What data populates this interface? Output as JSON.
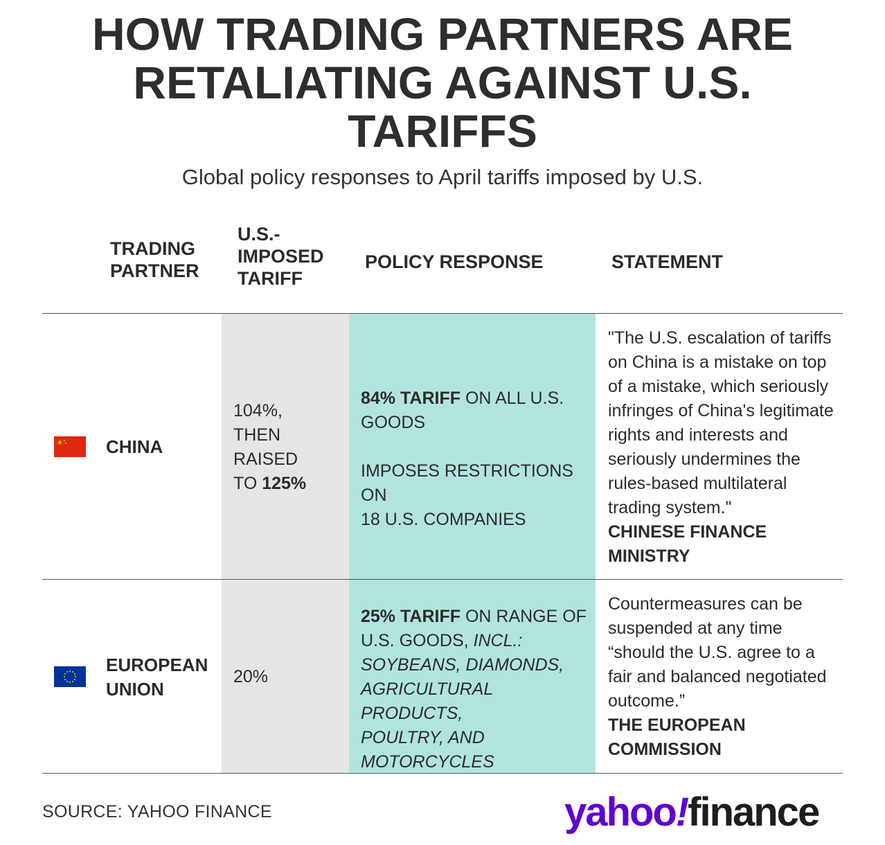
{
  "title_lines": [
    "HOW TRADING PARTNERS ARE",
    "RETALIATING AGAINST U.S.",
    "TARIFFS"
  ],
  "subtitle": "Global policy responses to April tariffs imposed by U.S.",
  "headers": {
    "partner": [
      "TRADING",
      "PARTNER"
    ],
    "tariff": [
      "U.S.-",
      "IMPOSED",
      "TARIFF"
    ],
    "response": "POLICY RESPONSE",
    "statement": "STATEMENT"
  },
  "rows": [
    {
      "flag": "china-flag",
      "partner": [
        "CHINA"
      ],
      "tariff_lines": [
        "104%,",
        "THEN",
        "RAISED"
      ],
      "tariff_last_prefix": "TO ",
      "tariff_last_bold": "125%",
      "response_bold": "84% TARIFF",
      "response_line1_rest": " ON ALL U.S.",
      "response_line2": "GOODS",
      "response_line3": "IMPOSES RESTRICTIONS ON",
      "response_line4": "18 U.S. COMPANIES",
      "statement_lines": [
        "\"The U.S. escalation of tariffs",
        "on China is a mistake on top",
        "of a mistake, which seriously",
        "infringes of China's legitimate",
        "rights and interests and",
        "seriously undermines the",
        "rules-based multilateral",
        "trading system.\""
      ],
      "source_lines": [
        "CHINESE FINANCE",
        "MINISTRY"
      ]
    },
    {
      "flag": "eu-flag",
      "partner": [
        "EUROPEAN",
        "UNION"
      ],
      "tariff_value": "20%",
      "response_bold": "25% TARIFF",
      "response_line1_rest": " ON RANGE OF",
      "response_line2_plain": "U.S. GOODS, ",
      "response_line2_italic": "INCL.:",
      "response_italic_lines": [
        "SOYBEANS, DIAMONDS,",
        "AGRICULTURAL PRODUCTS,",
        "POULTRY, AND",
        "MOTORCYCLES"
      ],
      "statement_lines": [
        "Countermeasures can be",
        "suspended at any time",
        "“should the U.S. agree to a",
        "fair and balanced negotiated",
        "outcome.”"
      ],
      "source_lines": [
        "THE EUROPEAN",
        "COMMISSION"
      ]
    }
  ],
  "footer": {
    "source": "SOURCE: YAHOO FINANCE",
    "logo_yahoo": "yahoo",
    "logo_mark": "!",
    "logo_finance": "finance"
  },
  "colors": {
    "tariff_band": "#e5e5e5",
    "response_band": "#b2e4de",
    "brand_purple": "#6001d2"
  }
}
